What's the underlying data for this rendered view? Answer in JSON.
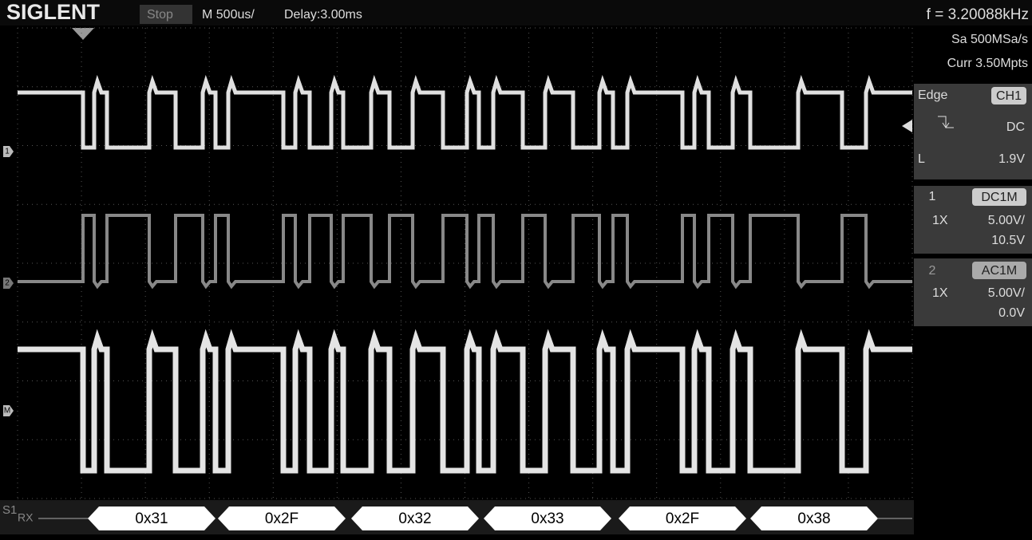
{
  "header": {
    "brand": "SIGLENT",
    "status": "Stop",
    "timebase": "M 500us/",
    "delay": "Delay:3.00ms",
    "frequency": "f = 3.20088kHz"
  },
  "side_panel": {
    "sample_rate": "Sa 500MSa/s",
    "memory": "Curr 3.50Mpts",
    "trigger": {
      "mode": "Edge",
      "source": "CH1",
      "coupling": "DC",
      "level_label": "L",
      "level": "1.9V"
    },
    "channels": [
      {
        "number": "1",
        "coupling": "DC1M",
        "probe": "1X",
        "scale": "5.00V/",
        "offset": "10.5V"
      },
      {
        "number": "2",
        "coupling": "AC1M",
        "probe": "1X",
        "scale": "5.00V/",
        "offset": "0.0V"
      }
    ]
  },
  "markers": {
    "ch1": "1",
    "ch2": "2",
    "math": "M"
  },
  "decode": {
    "bus": "S1",
    "label": "RX",
    "bytes": [
      "0x31",
      "0x2F",
      "0x32",
      "0x33",
      "0x2F",
      "0x38"
    ]
  }
}
